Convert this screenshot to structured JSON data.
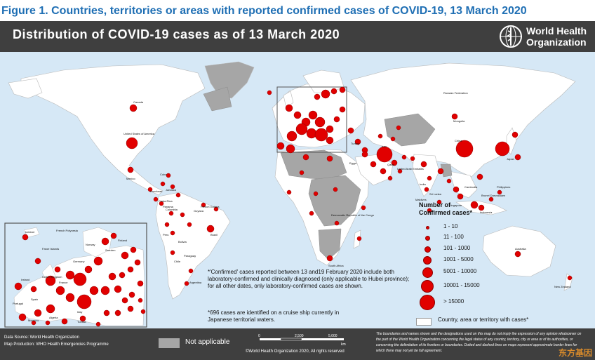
{
  "caption": "Figure 1. Countries, territories or areas with reported confirmed cases of COVID-19, 13 March 2020",
  "map_title": "Distribution of COVID-19  cases as of 13 March 2020",
  "who": {
    "line1": "World Health",
    "line2": "Organization"
  },
  "colors": {
    "case": "#e10000",
    "land": "#ffffff",
    "not_applicable": "#a6a6a6",
    "ocean": "#d6e8f6",
    "header": "#3f3f3f",
    "caption": "#1f6fb4"
  },
  "legend": {
    "title_line1": "Number of",
    "title_line2": "Confirmed cases*",
    "classes": [
      {
        "label": "1 - 10"
      },
      {
        "label": "11 - 100"
      },
      {
        "label": "101 - 1000"
      },
      {
        "label": "1001 - 5000"
      },
      {
        "label": "5001 - 10000"
      },
      {
        "label": "10001 - 15000"
      },
      {
        "label": "> 15000"
      }
    ],
    "white_label": "Country, area or territory with cases*"
  },
  "notes": {
    "confirmed": "*'Confirmed' cases reported between 13 and19 February 2020 include both laboratory-confirmed and clinically diagnosed (only applicable to Hubei province); for all other dates, only laboratory-confirmed cases are shown.",
    "cruise": "*696 cases are identified on a cruise ship currently in Japanese territorial waters."
  },
  "footer": {
    "source_line": "Data Source: World Health Organization",
    "production_line": "Map Production: WHO Health Emergencies Programme",
    "not_applicable": "Not applicable",
    "scale": {
      "zero": "0",
      "mid": "2,500",
      "end": "5,000",
      "unit": "km"
    },
    "copyright": "©World Health Organization 2020, All rights reserved",
    "disclaimer": "The boundaries and names shown and the designations used on this map do not imply the expression of any opinion whatsoever on the part of the World Health Organization concerning the legal status of any country, territory, city or area or of its authorities, or concerning the delimitation of its frontiers or boundaries. Dotted and dashed lines on maps represent approximate border lines for which there may not yet be full agreement."
  },
  "watermark": "东方基因",
  "map_labels": {
    "canada": "Canada",
    "usa": "United States of America",
    "mexico": "Mexico",
    "brazil": "Brazil",
    "argentina": "Argentina",
    "colombia": "Colombia",
    "peru": "Peru",
    "bolivia": "Bolivia",
    "chile": "Chile",
    "australia": "Australia",
    "new_zealand": "New Zealand",
    "russia": "Russian Federation",
    "china": "China",
    "japan": "Japan",
    "india": "India",
    "iran": "Iran",
    "egypt": "Egypt",
    "south_africa": "South Africa",
    "drc": "Democratic Republic of the Congo",
    "french_polynesia": "French Polynesia",
    "italy": "Italy",
    "spain": "Spain",
    "france": "France",
    "germany": "Germany",
    "united_kingdom": "United Kingdom",
    "norway": "Norway",
    "sweden": "Sweden",
    "iceland": "Iceland",
    "faroe": "Faroe Islands",
    "finland": "Finland",
    "ireland": "Ireland",
    "portugal": "Portugal",
    "morocco": "Morocco",
    "algeria": "Algeria",
    "tunisia": "Tunisia",
    "singapore": "Singapore",
    "philippines": "Philippines",
    "indonesia": "Indonesia",
    "maldives": "Maldives",
    "sri_lanka": "Sri Lanka",
    "cambodia": "Cambodia",
    "brunei": "Brunei Darussalam",
    "cuba": "Cuba",
    "jamaica": "Jamaica",
    "costa_rica": "Costa Rica",
    "panama": "Panama",
    "honduras": "Honduras",
    "french_guiana": "French Guiana",
    "guyana": "Guyana",
    "paraguay": "Paraguay",
    "mongolia": "Mongolia",
    "turkey": "Turkey",
    "qatar": "Qatar",
    "uae": "United Arab Emirates"
  }
}
